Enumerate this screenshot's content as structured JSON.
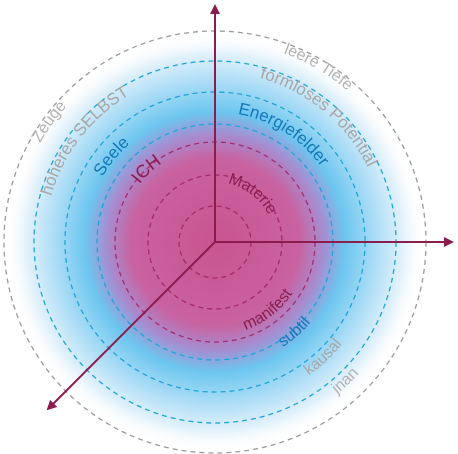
{
  "colors": {
    "magenta": "#a0205f",
    "magenta_text": "#8b1d4f",
    "blue": "#1ea4d8",
    "blue_text": "#1577b8",
    "gray": "#9a9a9a",
    "gray_text": "#a7a7a7",
    "axis": "#8a1c4e"
  },
  "labels": {
    "manifest_top": "Materie",
    "manifest_left": "ICH",
    "manifest_bottom": "manifest",
    "subtle_top": "Energiefelder",
    "subtle_left": "Seele",
    "subtle_bottom": "subtil",
    "causal_top": "formloses Potential",
    "causal_left": "höheres SELBST",
    "causal_bottom": "kausal",
    "outer_top": "leere Tiefe",
    "outer_left": "Zeuge",
    "outer_bottom": "jnan"
  }
}
